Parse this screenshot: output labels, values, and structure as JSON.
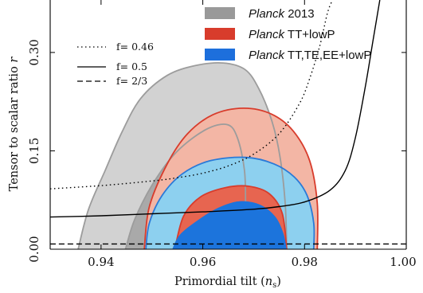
{
  "chart_data": {
    "type": "contour",
    "xlabel": "Primordial tilt (",
    "xlabel_symbol": "n",
    "xlabel_subscript": "s",
    "xlabel_close": ")",
    "ylabel_text": "Tensor to scalar ratio ",
    "ylabel_symbol": "r",
    "xlim": [
      0.93,
      1.0
    ],
    "ylim": [
      0.0,
      0.38
    ],
    "x_ticks": [
      {
        "value": 0.94,
        "label": "0.94"
      },
      {
        "value": 0.96,
        "label": "0.96"
      },
      {
        "value": 0.98,
        "label": "0.98"
      },
      {
        "value": 1.0,
        "label": "1.00"
      }
    ],
    "y_ticks": [
      {
        "value": 0.0,
        "label": "0.00"
      },
      {
        "value": 0.15,
        "label": "0.15"
      },
      {
        "value": 0.3,
        "label": "0.30"
      }
    ],
    "legend_datasets": [
      {
        "italic": "Planck",
        "rest": " 2013",
        "color": "#999999"
      },
      {
        "italic": "Planck",
        "rest": " TT+lowP",
        "color": "#d83c2c"
      },
      {
        "italic": "Planck",
        "rest": " TT,TE,EE+lowP",
        "color": "#1d6fdc"
      }
    ],
    "legend_curves": [
      {
        "label": "f= 0.46",
        "style": "dotted"
      },
      {
        "label": "f= 0.5",
        "style": "solid"
      },
      {
        "label": "f= 2/3",
        "style": "dashed"
      }
    ],
    "colors": {
      "planck2013_outer": "#d2d2d2",
      "planck2013_inner": "#a9a9a9",
      "planck2013_edge": "#9c9c9c",
      "tt_outer": "#f3b6a5",
      "tt_inner": "#e76550",
      "tt_edge": "#d83c2c",
      "tte_outer": "#8dd0ef",
      "tte_inner": "#1c74dc",
      "tte_edge": "#2a7ad8"
    },
    "regions": [
      {
        "name": "planck2013-68",
        "fill": "planck2013_inner",
        "stroke": "planck2013_edge",
        "points": [
          [
            0.9448,
            0.0
          ],
          [
            0.9466,
            0.045
          ],
          [
            0.9502,
            0.1
          ],
          [
            0.9548,
            0.148
          ],
          [
            0.9605,
            0.182
          ],
          [
            0.9648,
            0.19
          ],
          [
            0.9668,
            0.17
          ],
          [
            0.9682,
            0.12
          ],
          [
            0.9684,
            0.06
          ],
          [
            0.9682,
            0.0
          ]
        ]
      },
      {
        "name": "planck2013-95",
        "fill": "planck2013_outer",
        "stroke": "planck2013_edge",
        "points": [
          [
            0.9355,
            0.0
          ],
          [
            0.9375,
            0.06
          ],
          [
            0.9408,
            0.12
          ],
          [
            0.9442,
            0.18
          ],
          [
            0.9478,
            0.23
          ],
          [
            0.953,
            0.265
          ],
          [
            0.9585,
            0.28
          ],
          [
            0.964,
            0.284
          ],
          [
            0.9683,
            0.274
          ],
          [
            0.971,
            0.245
          ],
          [
            0.9736,
            0.195
          ],
          [
            0.9752,
            0.14
          ],
          [
            0.9762,
            0.07
          ],
          [
            0.9765,
            0.0
          ]
        ]
      },
      {
        "name": "tt-95",
        "fill": "tt_outer",
        "stroke": "tt_edge",
        "points": [
          [
            0.9485,
            0.0
          ],
          [
            0.9495,
            0.065
          ],
          [
            0.953,
            0.13
          ],
          [
            0.957,
            0.176
          ],
          [
            0.962,
            0.205
          ],
          [
            0.968,
            0.215
          ],
          [
            0.9735,
            0.206
          ],
          [
            0.9778,
            0.18
          ],
          [
            0.981,
            0.135
          ],
          [
            0.9825,
            0.07
          ],
          [
            0.9825,
            0.0
          ]
        ]
      },
      {
        "name": "tt-68",
        "fill": "tt_inner",
        "stroke": "tt_edge",
        "points": [
          [
            0.9545,
            0.0
          ],
          [
            0.9562,
            0.05
          ],
          [
            0.9596,
            0.08
          ],
          [
            0.9645,
            0.094
          ],
          [
            0.969,
            0.096
          ],
          [
            0.973,
            0.085
          ],
          [
            0.9756,
            0.055
          ],
          [
            0.9765,
            0.0
          ]
        ]
      },
      {
        "name": "tte-95",
        "fill": "tte_outer",
        "stroke": "tte_edge",
        "points": [
          [
            0.9488,
            0.0
          ],
          [
            0.9495,
            0.04
          ],
          [
            0.952,
            0.082
          ],
          [
            0.956,
            0.115
          ],
          [
            0.9615,
            0.135
          ],
          [
            0.9685,
            0.14
          ],
          [
            0.974,
            0.13
          ],
          [
            0.978,
            0.11
          ],
          [
            0.9805,
            0.082
          ],
          [
            0.9818,
            0.04
          ],
          [
            0.9818,
            0.0
          ]
        ]
      },
      {
        "name": "tte-68",
        "fill": "tte_inner",
        "stroke": "tte_edge",
        "points": [
          [
            0.954,
            0.0
          ],
          [
            0.9555,
            0.022
          ],
          [
            0.959,
            0.044
          ],
          [
            0.963,
            0.063
          ],
          [
            0.9672,
            0.073
          ],
          [
            0.9712,
            0.068
          ],
          [
            0.9742,
            0.05
          ],
          [
            0.9758,
            0.025
          ],
          [
            0.9765,
            0.0
          ]
        ]
      }
    ],
    "curves": [
      {
        "name": "f=0.46",
        "style": "dotted",
        "points": [
          [
            0.93,
            0.092
          ],
          [
            0.94,
            0.097
          ],
          [
            0.95,
            0.104
          ],
          [
            0.955,
            0.109
          ],
          [
            0.96,
            0.116
          ],
          [
            0.965,
            0.127
          ],
          [
            0.97,
            0.145
          ],
          [
            0.975,
            0.176
          ],
          [
            0.979,
            0.222
          ],
          [
            0.981,
            0.26
          ],
          [
            0.983,
            0.31
          ],
          [
            0.9845,
            0.36
          ],
          [
            0.9855,
            0.38
          ]
        ]
      },
      {
        "name": "f=0.5",
        "style": "solid",
        "points": [
          [
            0.93,
            0.049
          ],
          [
            0.94,
            0.051
          ],
          [
            0.95,
            0.054
          ],
          [
            0.96,
            0.057
          ],
          [
            0.97,
            0.061
          ],
          [
            0.975,
            0.065
          ],
          [
            0.98,
            0.072
          ],
          [
            0.985,
            0.09
          ],
          [
            0.988,
            0.12
          ],
          [
            0.99,
            0.17
          ],
          [
            0.992,
            0.25
          ],
          [
            0.9935,
            0.32
          ],
          [
            0.9948,
            0.38
          ]
        ]
      },
      {
        "name": "f=2/3",
        "style": "dashed",
        "points": [
          [
            0.93,
            0.008
          ],
          [
            1.0,
            0.008
          ]
        ]
      }
    ]
  }
}
